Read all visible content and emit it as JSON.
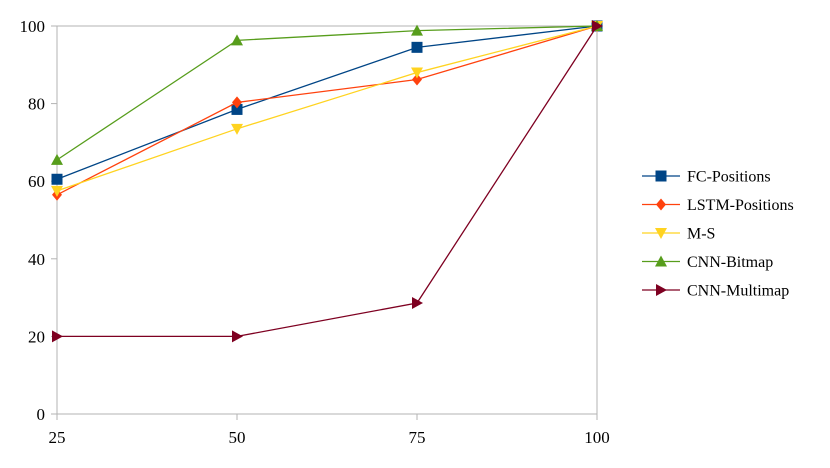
{
  "chart_data": {
    "type": "line",
    "title": "",
    "xlabel": "",
    "ylabel": "",
    "x": [
      25,
      50,
      75,
      100
    ],
    "xlim": [
      25,
      100
    ],
    "ylim": [
      0,
      100
    ],
    "x_ticks": [
      "25",
      "50",
      "75",
      "100"
    ],
    "y_ticks": [
      "0",
      "20",
      "40",
      "60",
      "80",
      "100"
    ],
    "grid": false,
    "legend_position": "right",
    "series": [
      {
        "name": "FC-Positions",
        "color": "#004586",
        "marker": "square",
        "values": [
          60.5,
          78.5,
          94.5,
          100
        ]
      },
      {
        "name": "LSTM-Positions",
        "color": "#ff420e",
        "marker": "diamond",
        "values": [
          56.5,
          80.3,
          86.2,
          100
        ]
      },
      {
        "name": "M-S",
        "color": "#ffd320",
        "marker": "triangle-down",
        "values": [
          57.5,
          73.5,
          88.0,
          100
        ]
      },
      {
        "name": "CNN-Bitmap",
        "color": "#579d1c",
        "marker": "triangle-up",
        "values": [
          65.5,
          96.3,
          98.8,
          100
        ]
      },
      {
        "name": "CNN-Multimap",
        "color": "#7e0021",
        "marker": "triangle-right",
        "values": [
          20,
          20,
          28.6,
          100
        ]
      }
    ]
  }
}
